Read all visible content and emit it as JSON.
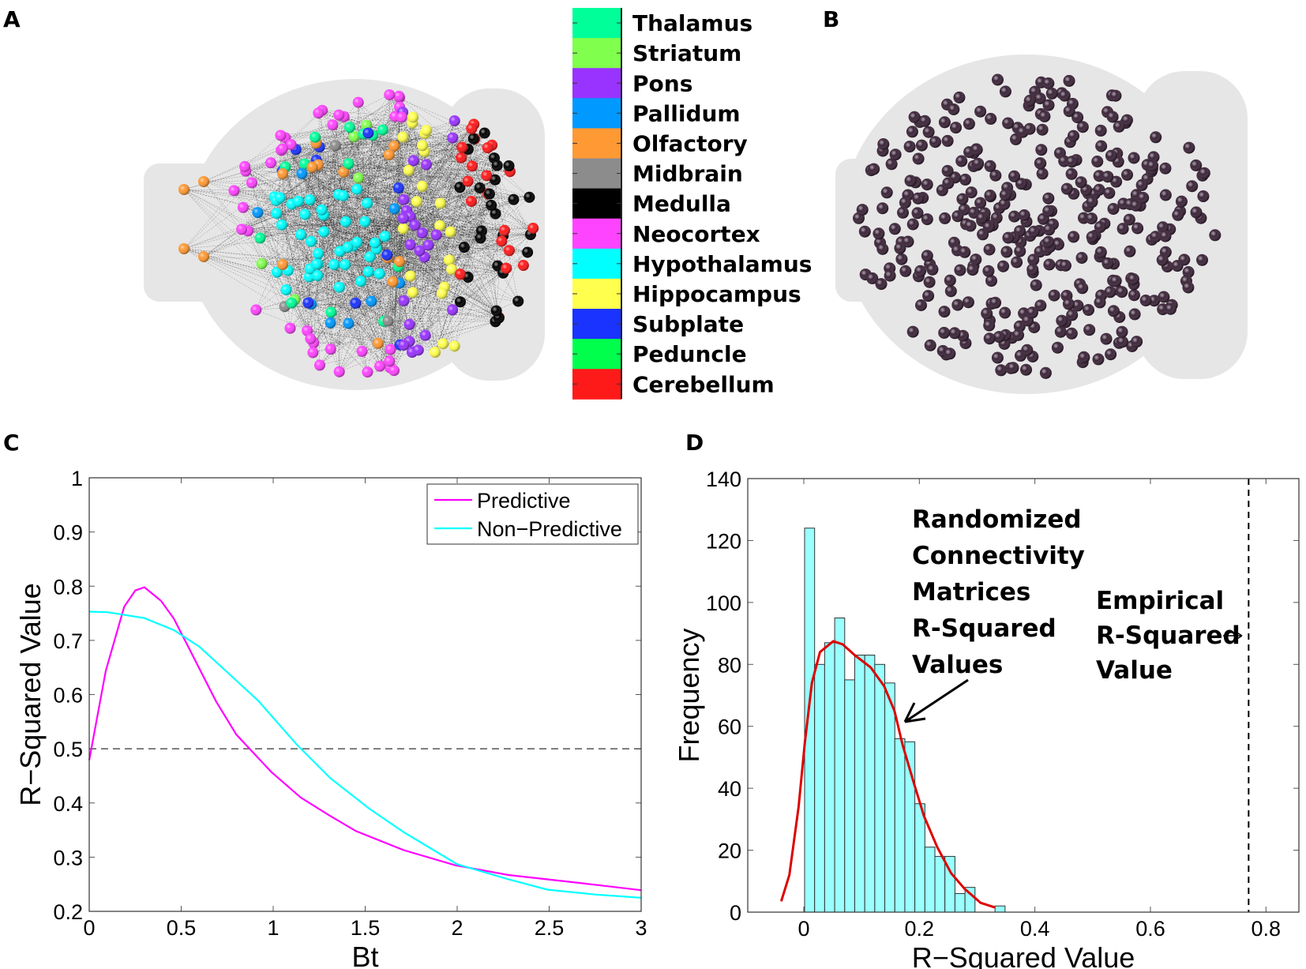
{
  "panels": {
    "a": "A",
    "b": "B",
    "c": "C",
    "d": "D"
  },
  "region_legend": [
    {
      "label": "Thalamus",
      "color": "#00FF99"
    },
    {
      "label": "Striatum",
      "color": "#80FF4D"
    },
    {
      "label": "Pons",
      "color": "#9933FF"
    },
    {
      "label": "Pallidum",
      "color": "#0099FF"
    },
    {
      "label": "Olfactory",
      "color": "#FF9933"
    },
    {
      "label": "Midbrain",
      "color": "#8C8C8C"
    },
    {
      "label": "Medulla",
      "color": "#000000"
    },
    {
      "label": "Neocortex",
      "color": "#FF44FF"
    },
    {
      "label": "Hypothalamus",
      "color": "#00FFFF"
    },
    {
      "label": "Hippocampus",
      "color": "#FFFF4D"
    },
    {
      "label": "Subplate",
      "color": "#1A33FF"
    },
    {
      "label": "Peduncle",
      "color": "#00FF4D"
    },
    {
      "label": "Cerebellum",
      "color": "#FF1A1A"
    }
  ],
  "chart_data": [
    {
      "type": "line",
      "panel": "C",
      "xlabel": "Bt",
      "ylabel": "R−Squared Value",
      "xlim": [
        0,
        3
      ],
      "ylim": [
        0.2,
        1
      ],
      "xticks": [
        "0",
        "0.5",
        "1",
        "1.5",
        "2",
        "2.5",
        "3"
      ],
      "xtick_values": [
        0,
        0.5,
        1,
        1.5,
        2,
        2.5,
        3
      ],
      "yticks": [
        "0.2",
        "0.3",
        "0.4",
        "0.5",
        "0.6",
        "0.7",
        "0.8",
        "0.9",
        "1"
      ],
      "ytick_values": [
        0.2,
        0.3,
        0.4,
        0.5,
        0.6,
        0.7,
        0.8,
        0.9,
        1
      ],
      "reference_line": {
        "y": 0.5,
        "style": "dashed"
      },
      "legend_position": "top-right",
      "series": [
        {
          "name": "Predictive",
          "color": "#FF00FF",
          "x": [
            0,
            0.09,
            0.19,
            0.25,
            0.3,
            0.39,
            0.46,
            0.54,
            0.69,
            0.8,
            0.99,
            1.15,
            1.31,
            1.45,
            1.71,
            1.99,
            2.28,
            2.65,
            3.0
          ],
          "y": [
            0.479,
            0.644,
            0.762,
            0.792,
            0.798,
            0.773,
            0.74,
            0.687,
            0.587,
            0.526,
            0.457,
            0.41,
            0.376,
            0.348,
            0.313,
            0.285,
            0.267,
            0.253,
            0.239
          ]
        },
        {
          "name": "Non−Predictive",
          "color": "#00FFFF",
          "x": [
            0,
            0.1,
            0.3,
            0.46,
            0.6,
            0.78,
            0.92,
            1.13,
            1.31,
            1.52,
            1.71,
            2.0,
            2.28,
            2.49,
            2.75,
            3.0
          ],
          "y": [
            0.753,
            0.752,
            0.741,
            0.719,
            0.688,
            0.632,
            0.588,
            0.507,
            0.446,
            0.39,
            0.346,
            0.287,
            0.259,
            0.24,
            0.231,
            0.225
          ]
        }
      ]
    },
    {
      "type": "bar",
      "panel": "D",
      "subtype": "histogram",
      "xlabel": "R−Squared Value",
      "ylabel": "Frequency",
      "xlim": [
        -0.097,
        0.857
      ],
      "ylim": [
        0,
        140
      ],
      "xticks": [
        "0",
        "0.2",
        "0.4",
        "0.6",
        "0.8"
      ],
      "xtick_values": [
        0,
        0.2,
        0.4,
        0.6,
        0.8
      ],
      "yticks": [
        "0",
        "20",
        "40",
        "60",
        "80",
        "100",
        "120",
        "140"
      ],
      "ytick_values": [
        0,
        20,
        40,
        60,
        80,
        100,
        120,
        140
      ],
      "bin_start": 0.0014,
      "bin_width": 0.01735,
      "counts": [
        124,
        80,
        87,
        95,
        75,
        83,
        83,
        80,
        74,
        56,
        55,
        35,
        21,
        18,
        18,
        6,
        8,
        0,
        0,
        2
      ],
      "bar_color": "#99FFFF",
      "density_curve": {
        "color": "#DD0000",
        "x": [
          -0.039,
          -0.025,
          -0.009,
          0.002,
          0.014,
          0.028,
          0.051,
          0.067,
          0.088,
          0.116,
          0.139,
          0.157,
          0.171,
          0.19,
          0.208,
          0.231,
          0.255,
          0.278,
          0.306,
          0.331
        ],
        "y": [
          3.5,
          12,
          34,
          55,
          74,
          84,
          87.5,
          86.5,
          83,
          79,
          73,
          65,
          54,
          42,
          31,
          21,
          12.6,
          7.6,
          3,
          1.5
        ]
      },
      "empirical_line": {
        "x": 0.77,
        "style": "dashed"
      },
      "annotations": {
        "randomized": [
          "Randomized",
          "Connectivity",
          "Matrices",
          "R-Squared",
          "Values"
        ],
        "empirical": [
          "Empirical",
          "R-Squared",
          "Value"
        ]
      }
    }
  ]
}
